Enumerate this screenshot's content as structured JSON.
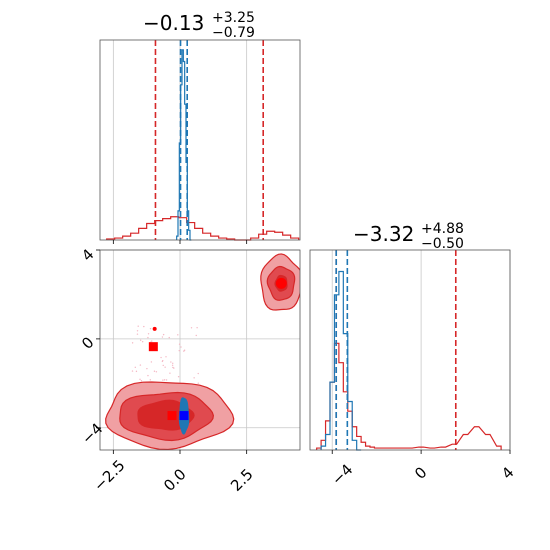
{
  "chart_data": {
    "type": "corner",
    "colors": {
      "red": "#d62728",
      "red_light": "#f0a0a3",
      "red_mid": "#e04a4f",
      "blue": "#1f77b4",
      "blue_marker": "#0000ff",
      "red_marker": "#ff0000"
    },
    "panels": [
      {
        "id": "hist-param-1",
        "type": "histogram",
        "title": {
          "main": "−0.13",
          "sup": "+3.25",
          "sub": "−0.79"
        },
        "xlim": [
          -3.0,
          4.5
        ],
        "grid_x": [
          -2.5,
          0.0,
          2.5
        ],
        "series": [
          {
            "name": "",
            "color": "#d62728",
            "step_x": [
              -2.6,
              -2.3,
              -2.0,
              -1.7,
              -1.4,
              -1.1,
              -0.8,
              -0.5,
              -0.2,
              0.1,
              0.4,
              0.7,
              1.0,
              1.3,
              1.6,
              1.9,
              2.2,
              2.5,
              2.8,
              3.1,
              3.4,
              3.7,
              4.0,
              4.3
            ],
            "step_y": [
              0.005,
              0.01,
              0.02,
              0.035,
              0.06,
              0.085,
              0.1,
              0.11,
              0.12,
              0.115,
              0.09,
              0.06,
              0.035,
              0.02,
              0.01,
              0.005,
              0.0,
              0.0,
              0.01,
              0.03,
              0.045,
              0.04,
              0.025,
              0.01
            ],
            "quantile_lines": [
              -0.92,
              3.12
            ]
          },
          {
            "name": "",
            "color": "#1f77b4",
            "step_x": [
              -0.1,
              -0.05,
              0.0,
              0.05,
              0.1,
              0.15,
              0.2,
              0.25,
              0.3,
              0.35,
              0.4
            ],
            "step_y": [
              0.02,
              0.15,
              0.5,
              0.8,
              0.98,
              0.92,
              0.7,
              0.4,
              0.15,
              0.05,
              0.0
            ],
            "quantile_lines": [
              0.02,
              0.27
            ]
          }
        ],
        "ylim": [
          0,
          1.0
        ]
      },
      {
        "id": "hist-param-2",
        "type": "histogram",
        "title": {
          "main": "−3.32",
          "sup": "+4.88",
          "sub": "−0.50"
        },
        "xlim": [
          -5.0,
          4.0
        ],
        "grid_x": [
          -4,
          0,
          4
        ],
        "series": [
          {
            "name": "",
            "color": "#d62728",
            "step_x": [
              -4.6,
              -4.4,
              -4.2,
              -4.0,
              -3.8,
              -3.6,
              -3.4,
              -3.2,
              -3.0,
              -2.8,
              -2.6,
              -2.4,
              -2.2,
              -2.0,
              -1.5,
              -1.0,
              -0.5,
              0.0,
              0.5,
              1.0,
              1.5,
              2.0,
              2.5,
              3.0,
              3.5
            ],
            "step_y": [
              0.01,
              0.05,
              0.15,
              0.35,
              0.55,
              0.45,
              0.3,
              0.2,
              0.12,
              0.07,
              0.04,
              0.02,
              0.015,
              0.01,
              0.01,
              0.01,
              0.01,
              0.015,
              0.01,
              0.015,
              0.03,
              0.08,
              0.12,
              0.08,
              0.02
            ],
            "quantile_lines": [
              -3.82,
              1.56
            ]
          },
          {
            "name": "",
            "color": "#1f77b4",
            "step_x": [
              -4.4,
              -4.2,
              -4.0,
              -3.8,
              -3.6,
              -3.4,
              -3.2,
              -3.0,
              -2.8
            ],
            "step_y": [
              0.02,
              0.08,
              0.35,
              0.8,
              0.92,
              0.6,
              0.25,
              0.05,
              0.0
            ],
            "quantile_lines": [
              -3.82,
              -3.32
            ]
          }
        ],
        "ylim": [
          0,
          1.0
        ]
      },
      {
        "id": "joint-param-1-2",
        "type": "contour",
        "xlim": [
          -3.0,
          4.5
        ],
        "ylim": [
          -5.0,
          4.0
        ],
        "grid_x": [
          -2.5,
          0.0,
          2.5
        ],
        "grid_y": [
          -4,
          0,
          4
        ],
        "contours": [
          {
            "color": "#d62728",
            "fill": "#f0a0a3",
            "cx": -0.45,
            "cy": -3.4,
            "rx": 2.35,
            "ry": 1.5
          },
          {
            "color": "#d62728",
            "fill": "#e04a4f",
            "cx": -0.55,
            "cy": -3.45,
            "rx": 1.75,
            "ry": 1.05
          },
          {
            "color": "#d62728",
            "fill": "#d62728",
            "cx": -0.55,
            "cy": -3.45,
            "rx": 1.05,
            "ry": 0.65
          },
          {
            "color": "#d62728",
            "fill": "#f0a0a3",
            "cx": 3.8,
            "cy": 2.5,
            "rx": 0.78,
            "ry": 1.25
          },
          {
            "color": "#d62728",
            "fill": "#e04a4f",
            "cx": 3.8,
            "cy": 2.5,
            "rx": 0.5,
            "ry": 0.75
          },
          {
            "color": "#d62728",
            "fill": "#d62728",
            "cx": 3.8,
            "cy": 2.5,
            "rx": 0.22,
            "ry": 0.35
          },
          {
            "color": "#1f77b4",
            "fill": "#1f77b4",
            "cx": 0.15,
            "cy": -3.45,
            "rx": 0.17,
            "ry": 0.8
          }
        ],
        "markers": [
          {
            "shape": "square",
            "color": "#ff0000",
            "x": -1.0,
            "y": -0.35
          },
          {
            "shape": "square",
            "color": "#ff0000",
            "x": -0.3,
            "y": -3.45
          },
          {
            "shape": "square",
            "color": "#0000ff",
            "x": 0.15,
            "y": -3.45
          },
          {
            "shape": "circle",
            "color": "#ff0000",
            "x": 3.8,
            "y": 2.5
          },
          {
            "shape": "dot",
            "color": "#ff0000",
            "x": -0.95,
            "y": 0.45
          }
        ]
      }
    ],
    "tick_labels": {
      "panel3_x": [
        "−2.5",
        "0.0",
        "2.5"
      ],
      "panel3_y": [
        "4",
        "0",
        "−4"
      ],
      "panel2_x": [
        "−4",
        "0",
        "4"
      ]
    }
  }
}
